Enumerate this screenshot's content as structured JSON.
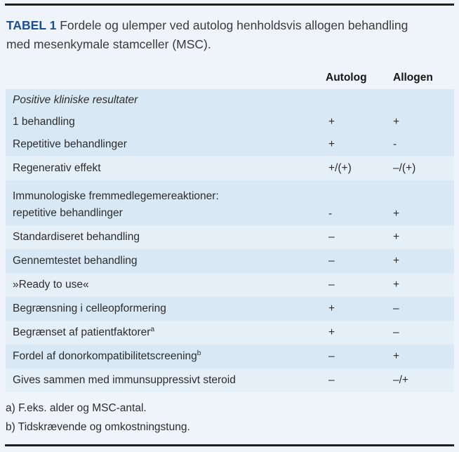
{
  "page": {
    "title_label": "TABEL 1",
    "title_text": "Fordele og ulemper ved autolog henholdsvis allogen behandling med mesenkymale stamceller (MSC)."
  },
  "columns": {
    "autolog": "Autolog",
    "allogen": "Allogen"
  },
  "table": {
    "rows": [
      {
        "label": "Positive kliniske resultater",
        "autolog": "",
        "allogen": ""
      },
      {
        "label": "1 behandling",
        "autolog": "+",
        "allogen": "+"
      },
      {
        "label": "Repetitive behandlinger",
        "autolog": "+",
        "allogen": "-"
      },
      {
        "label": "Regenerativ effekt",
        "autolog": "+/(+)",
        "allogen": "–/(+)"
      },
      {
        "label": "Immunologiske fremmedlegemereaktioner:",
        "label2": "repetitive behandlinger",
        "autolog": "-",
        "allogen": "+"
      },
      {
        "label": "Standardiseret behandling",
        "autolog": "–",
        "allogen": "+"
      },
      {
        "label": "Gennemtestet behandling",
        "autolog": "–",
        "allogen": "+"
      },
      {
        "label": "»Ready to use«",
        "autolog": "–",
        "allogen": "+"
      },
      {
        "label": "Begrænsning i celleopformering",
        "autolog": "+",
        "allogen": "–"
      },
      {
        "label": "Begrænset af patientfaktorer",
        "sup": "a",
        "autolog": "+",
        "allogen": "–"
      },
      {
        "label": "Fordel af donorkompatibilitetscreening",
        "sup": "b",
        "autolog": "–",
        "allogen": "+"
      },
      {
        "label": "Gives sammen med immunsuppressivt steroid",
        "autolog": "–",
        "allogen": "–/+"
      }
    ]
  },
  "footnotes": {
    "a": "a) F.eks. alder og MSC-antal.",
    "b": "b) Tidskrævende og omkostningstung."
  },
  "colors": {
    "page_background": "#eef4fa",
    "stripe_dark": "#d8e9f5",
    "stripe_light": "#e5eff8",
    "rule": "#1e1e1e",
    "title_accent": "#1d4e94",
    "text": "#2c2c2c"
  }
}
